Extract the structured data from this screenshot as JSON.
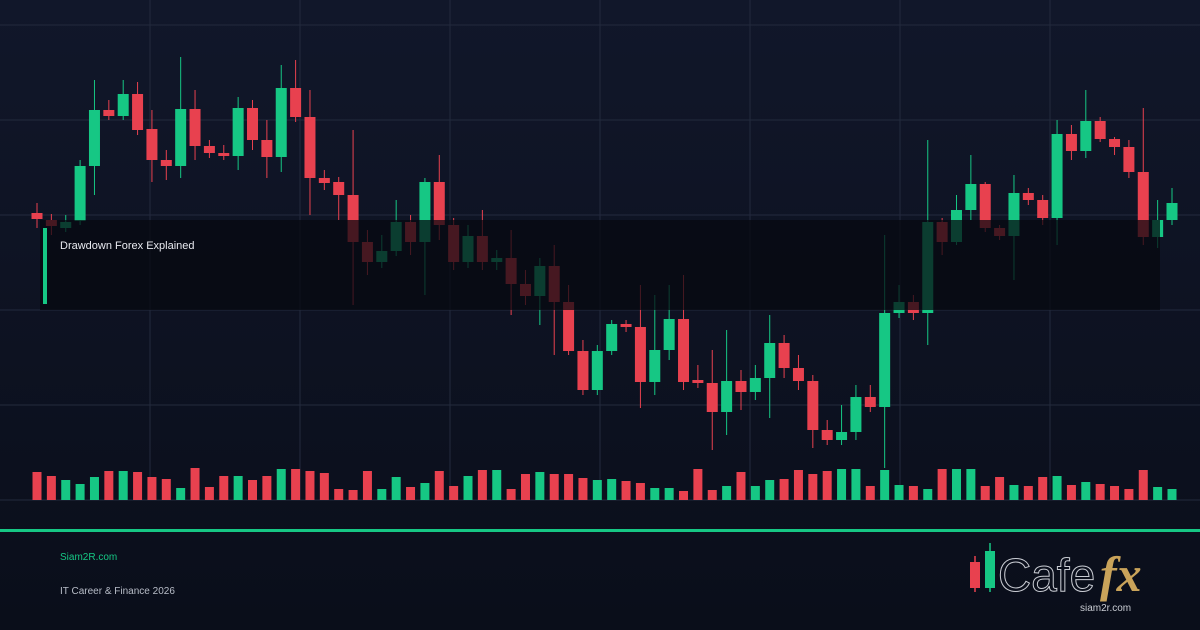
{
  "chart_data": {
    "type": "candlestick",
    "title": "Drawdown Forex Explained",
    "ylim": [
      0,
      500
    ],
    "up_color": "#16c784",
    "down_color": "#e8414f",
    "open": [
      287,
      280,
      272,
      279,
      334,
      390,
      384,
      406,
      371,
      340,
      334,
      391,
      354,
      347,
      344,
      392,
      360,
      343,
      412,
      383,
      322,
      318,
      305,
      258,
      238,
      249,
      278,
      258,
      318,
      275,
      238,
      264,
      238,
      242,
      216,
      204,
      234,
      198,
      149,
      110,
      149,
      176,
      173,
      118,
      150,
      181,
      120,
      117,
      88,
      119,
      108,
      122,
      157,
      132,
      119,
      70,
      60,
      68,
      103,
      93,
      187,
      198,
      187,
      278,
      258,
      290,
      316,
      272,
      264,
      307,
      300,
      282,
      366,
      349,
      379,
      361,
      353,
      328,
      263,
      280
    ],
    "close": [
      281,
      274,
      278,
      334,
      390,
      384,
      406,
      370,
      340,
      334,
      391,
      354,
      347,
      344,
      392,
      360,
      343,
      412,
      383,
      322,
      317,
      305,
      258,
      238,
      249,
      278,
      258,
      318,
      275,
      238,
      264,
      238,
      242,
      216,
      204,
      234,
      198,
      149,
      110,
      149,
      176,
      173,
      118,
      150,
      181,
      118,
      117,
      88,
      119,
      108,
      122,
      157,
      132,
      119,
      70,
      60,
      68,
      103,
      93,
      187,
      198,
      187,
      278,
      258,
      290,
      316,
      272,
      264,
      307,
      300,
      282,
      366,
      349,
      379,
      361,
      353,
      328,
      263,
      280,
      297
    ],
    "high": [
      297,
      286,
      285,
      340,
      420,
      400,
      420,
      418,
      390,
      350,
      443,
      410,
      360,
      355,
      403,
      400,
      380,
      435,
      440,
      410,
      330,
      323,
      370,
      270,
      265,
      300,
      285,
      322,
      345,
      282,
      275,
      290,
      250,
      270,
      230,
      242,
      255,
      215,
      160,
      155,
      180,
      180,
      215,
      205,
      215,
      225,
      135,
      150,
      170,
      130,
      135,
      185,
      165,
      145,
      125,
      80,
      95,
      115,
      115,
      265,
      215,
      205,
      360,
      282,
      305,
      345,
      318,
      275,
      325,
      312,
      305,
      380,
      375,
      410,
      383,
      363,
      360,
      392,
      300,
      312
    ],
    "low": [
      272,
      265,
      268,
      275,
      305,
      380,
      380,
      365,
      318,
      320,
      322,
      340,
      342,
      340,
      330,
      350,
      322,
      328,
      378,
      285,
      310,
      280,
      195,
      225,
      232,
      244,
      245,
      205,
      260,
      230,
      232,
      230,
      230,
      185,
      195,
      175,
      145,
      145,
      105,
      105,
      145,
      168,
      92,
      105,
      140,
      110,
      112,
      50,
      65,
      90,
      100,
      82,
      122,
      110,
      52,
      55,
      55,
      60,
      88,
      32,
      182,
      180,
      155,
      245,
      255,
      280,
      268,
      260,
      220,
      295,
      275,
      255,
      340,
      342,
      358,
      345,
      322,
      255,
      252,
      275
    ],
    "volume": [
      28,
      24,
      20,
      16,
      23,
      29,
      29,
      28,
      23,
      21,
      12,
      32,
      13,
      24,
      24,
      20,
      24,
      31,
      31,
      29,
      27,
      11,
      10,
      29,
      11,
      23,
      13,
      17,
      29,
      14,
      24,
      30,
      30,
      11,
      26,
      28,
      26,
      26,
      22,
      20,
      21,
      19,
      17,
      12,
      12,
      9,
      31,
      10,
      14,
      28,
      14,
      20,
      21,
      30,
      26,
      29,
      31,
      31,
      14,
      30,
      15,
      14,
      11,
      31,
      31,
      31,
      14,
      23,
      15,
      14,
      23,
      24,
      15,
      18,
      16,
      14,
      11,
      30,
      13,
      11
    ]
  },
  "footer": {
    "site": "Siam2R.com",
    "tagline": "IT Career & Finance 2026"
  },
  "logo": {
    "name_a": "Cafe",
    "name_b": "fx",
    "url": "siam2r.com"
  }
}
